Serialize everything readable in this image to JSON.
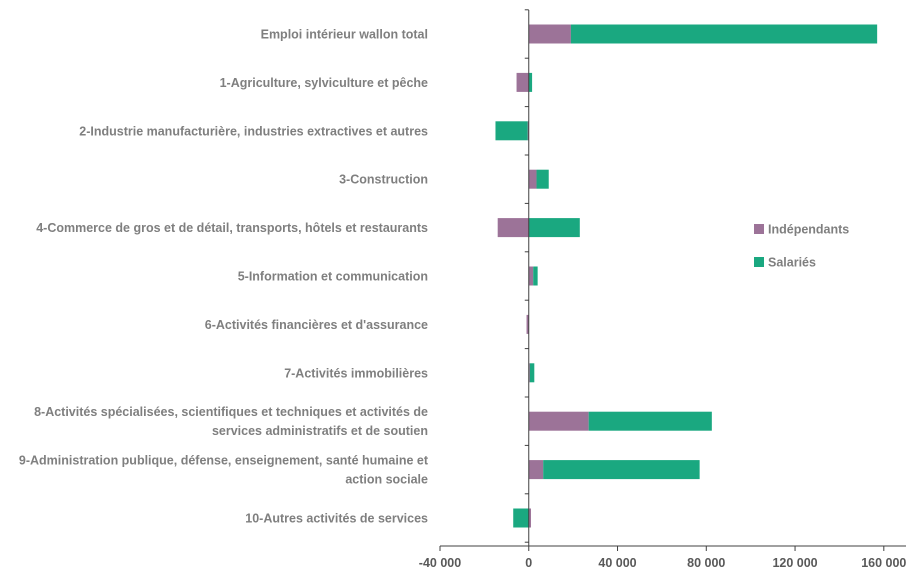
{
  "chart_data": {
    "type": "bar",
    "orientation": "horizontal",
    "stacked": true,
    "categories": [
      [
        "Emploi intérieur wallon total"
      ],
      [
        "1-Agriculture, sylviculture et pêche"
      ],
      [
        "2-Industrie manufacturière, industries extractives et autres"
      ],
      [
        "3-Construction"
      ],
      [
        "4-Commerce de gros et de détail, transports, hôtels et restaurants"
      ],
      [
        "5-Information et communication"
      ],
      [
        "6-Activités financières et d'assurance"
      ],
      [
        "7-Activités immobilières"
      ],
      [
        "8-Activités spécialisées, scientifiques et techniques et activités de",
        "services administratifs et de soutien"
      ],
      [
        "9-Administration publique, défense, enseignement, santé humaine et",
        "action sociale"
      ],
      [
        "10-Autres activités de services"
      ]
    ],
    "series": [
      {
        "name": "Indépendants",
        "color": "#9c7398",
        "values": [
          19000,
          -5500,
          -500,
          3500,
          -14000,
          2000,
          -1000,
          500,
          27000,
          6500,
          1000
        ]
      },
      {
        "name": "Salariés",
        "color": "#1aa880",
        "values": [
          138000,
          1500,
          -14500,
          5500,
          23000,
          2000,
          0,
          2000,
          55500,
          70500,
          -7000
        ]
      }
    ],
    "xlim": [
      -40000,
      170000
    ],
    "xticks": [
      -40000,
      0,
      40000,
      80000,
      120000,
      160000
    ],
    "xtick_labels": [
      "-40 000",
      "0",
      "40 000",
      "80 000",
      "120 000",
      "160 000"
    ],
    "legend_position": "right",
    "grid": false
  }
}
